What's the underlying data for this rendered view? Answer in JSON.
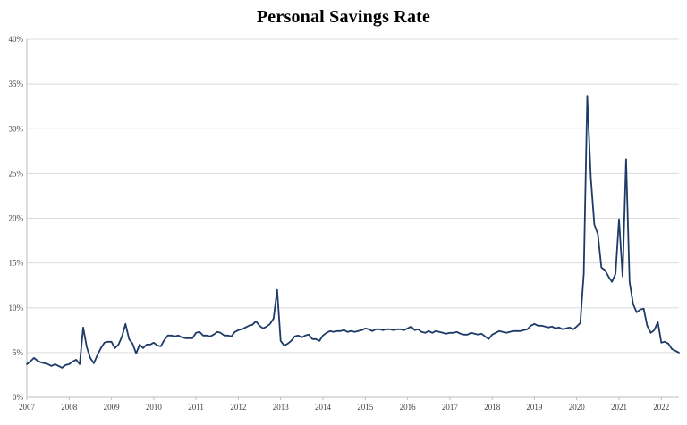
{
  "chart_data": {
    "type": "line",
    "title": "Personal Savings Rate",
    "xlabel": "",
    "ylabel": "",
    "frequency": "monthly",
    "x_start": "2007-01",
    "x_end": "2022-06",
    "ylim": [
      0,
      40
    ],
    "y_ticks": [
      0,
      5,
      10,
      15,
      20,
      25,
      30,
      35,
      40
    ],
    "y_tick_labels": [
      "0%",
      "5%",
      "10%",
      "15%",
      "20%",
      "25%",
      "30%",
      "35%",
      "40%"
    ],
    "x_tick_labels": [
      "2007",
      "2008",
      "2009",
      "2010",
      "2011",
      "2012",
      "2013",
      "2014",
      "2015",
      "2016",
      "2017",
      "2018",
      "2019",
      "2020",
      "2021",
      "2022"
    ],
    "grid": "horizontal",
    "legend": "none",
    "colors": {
      "line": "#1e3a66",
      "grid": "#dcdcdc",
      "axis": "#bdbdbd",
      "tick_label": "#3f3f3f",
      "background": "#ffffff"
    },
    "series": [
      {
        "name": "Personal Savings Rate",
        "color": "#1e3a66",
        "values": [
          3.7,
          4.0,
          4.4,
          4.1,
          3.9,
          3.8,
          3.7,
          3.5,
          3.7,
          3.5,
          3.3,
          3.6,
          3.7,
          4.0,
          4.2,
          3.7,
          7.8,
          5.6,
          4.4,
          3.8,
          4.7,
          5.5,
          6.1,
          6.2,
          6.2,
          5.5,
          5.9,
          6.8,
          8.2,
          6.5,
          6.0,
          4.9,
          5.9,
          5.5,
          5.9,
          5.9,
          6.1,
          5.8,
          5.7,
          6.4,
          6.9,
          6.9,
          6.8,
          6.9,
          6.7,
          6.6,
          6.6,
          6.6,
          7.2,
          7.3,
          6.9,
          6.9,
          6.8,
          7.0,
          7.3,
          7.2,
          6.9,
          6.9,
          6.8,
          7.3,
          7.5,
          7.6,
          7.8,
          8.0,
          8.1,
          8.5,
          8.0,
          7.7,
          7.9,
          8.2,
          8.8,
          12.0,
          6.3,
          5.8,
          6.0,
          6.3,
          6.8,
          6.9,
          6.7,
          6.9,
          7.0,
          6.5,
          6.5,
          6.3,
          6.9,
          7.2,
          7.4,
          7.3,
          7.4,
          7.4,
          7.5,
          7.3,
          7.4,
          7.3,
          7.4,
          7.5,
          7.7,
          7.6,
          7.4,
          7.6,
          7.6,
          7.5,
          7.6,
          7.6,
          7.5,
          7.6,
          7.6,
          7.5,
          7.7,
          7.9,
          7.5,
          7.6,
          7.3,
          7.2,
          7.4,
          7.2,
          7.4,
          7.3,
          7.2,
          7.1,
          7.2,
          7.2,
          7.3,
          7.1,
          7.0,
          7.0,
          7.2,
          7.1,
          7.0,
          7.1,
          6.8,
          6.5,
          7.0,
          7.2,
          7.4,
          7.3,
          7.2,
          7.3,
          7.4,
          7.4,
          7.4,
          7.5,
          7.6,
          8.0,
          8.2,
          8.0,
          8.0,
          7.9,
          7.8,
          7.9,
          7.7,
          7.8,
          7.6,
          7.7,
          7.8,
          7.6,
          7.9,
          8.3,
          13.8,
          33.7,
          24.5,
          19.3,
          18.2,
          14.5,
          14.2,
          13.5,
          12.9,
          13.8,
          19.9,
          13.5,
          26.6,
          12.9,
          10.4,
          9.5,
          9.8,
          9.9,
          8.0,
          7.2,
          7.5,
          8.4,
          6.1,
          6.2,
          6.0,
          5.4,
          5.2,
          5.0
        ]
      }
    ]
  }
}
